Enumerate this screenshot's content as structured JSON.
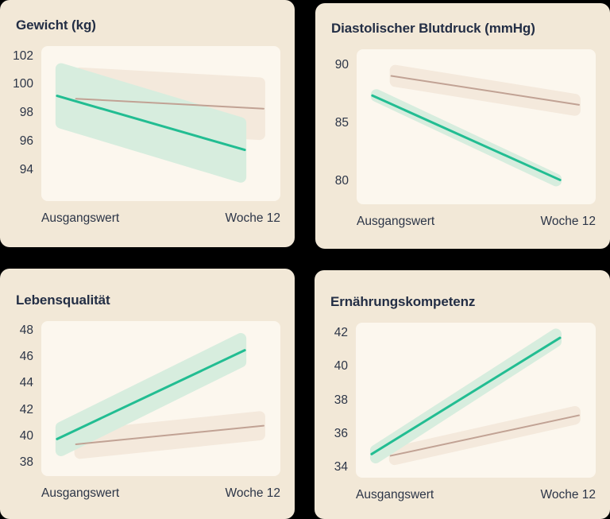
{
  "page": {
    "background": "#000000",
    "panel_bg": "#f2e8d7",
    "plot_bg": "#fcf7ee",
    "text_color": "#232e45",
    "accent_teal": "#22bd92",
    "accent_tan": "#c1a294"
  },
  "x_tick_labels": [
    "Ausgangswert",
    "Woche 12"
  ],
  "chart_data": [
    {
      "type": "line",
      "title": "Gewicht (kg)",
      "x": [
        "Ausgangswert",
        "Woche 12"
      ],
      "series": [
        {
          "name": "teal-series",
          "color": "#22bd92",
          "band_color": "#d7edde",
          "values": [
            99.2,
            95.4
          ],
          "ci": 2.3
        },
        {
          "name": "tan-series",
          "color": "#c1a294",
          "band_color": "#f4e9dc",
          "values": [
            99.0,
            98.3
          ],
          "ci": 2.2
        }
      ],
      "yticks": [
        102,
        100,
        98,
        96,
        94
      ],
      "ylim": [
        91.8,
        102.7
      ],
      "grid": false,
      "legend": "none"
    },
    {
      "type": "line",
      "title": "Diastolischer Blutdruck (mmHg)",
      "x": [
        "Ausgangswert",
        "Woche 12"
      ],
      "series": [
        {
          "name": "teal-series",
          "color": "#22bd92",
          "band_color": "#d7edde",
          "values": [
            87.4,
            80.1
          ],
          "ci": 0.55
        },
        {
          "name": "tan-series",
          "color": "#c1a294",
          "band_color": "#f4e9dc",
          "values": [
            89.1,
            86.6
          ],
          "ci": 0.95
        }
      ],
      "yticks": [
        90,
        85,
        80
      ],
      "ylim": [
        78.0,
        91.4
      ],
      "grid": false,
      "legend": "none"
    },
    {
      "type": "line",
      "title": "Lebensqualität",
      "x": [
        "Ausgangswert",
        "Woche 12"
      ],
      "series": [
        {
          "name": "teal-series",
          "color": "#22bd92",
          "band_color": "#d7edde",
          "values": [
            39.8,
            46.5
          ],
          "ci": 1.3
        },
        {
          "name": "tan-series",
          "color": "#c1a294",
          "band_color": "#f4e9dc",
          "values": [
            39.4,
            40.8
          ],
          "ci": 1.1
        }
      ],
      "yticks": [
        48,
        46,
        44,
        42,
        40,
        38
      ],
      "ylim": [
        37.0,
        48.7
      ],
      "grid": false,
      "legend": "none"
    },
    {
      "type": "line",
      "title": "Ernährungskompetenz",
      "x": [
        "Ausgangswert",
        "Woche 12"
      ],
      "series": [
        {
          "name": "teal-series",
          "color": "#22bd92",
          "band_color": "#d7edde",
          "values": [
            34.8,
            41.7
          ],
          "ci": 0.55
        },
        {
          "name": "tan-series",
          "color": "#c1a294",
          "band_color": "#f4e9dc",
          "values": [
            34.7,
            37.1
          ],
          "ci": 0.55
        }
      ],
      "yticks": [
        42,
        40,
        38,
        36,
        34
      ],
      "ylim": [
        33.4,
        42.6
      ],
      "grid": false,
      "legend": "none"
    }
  ]
}
